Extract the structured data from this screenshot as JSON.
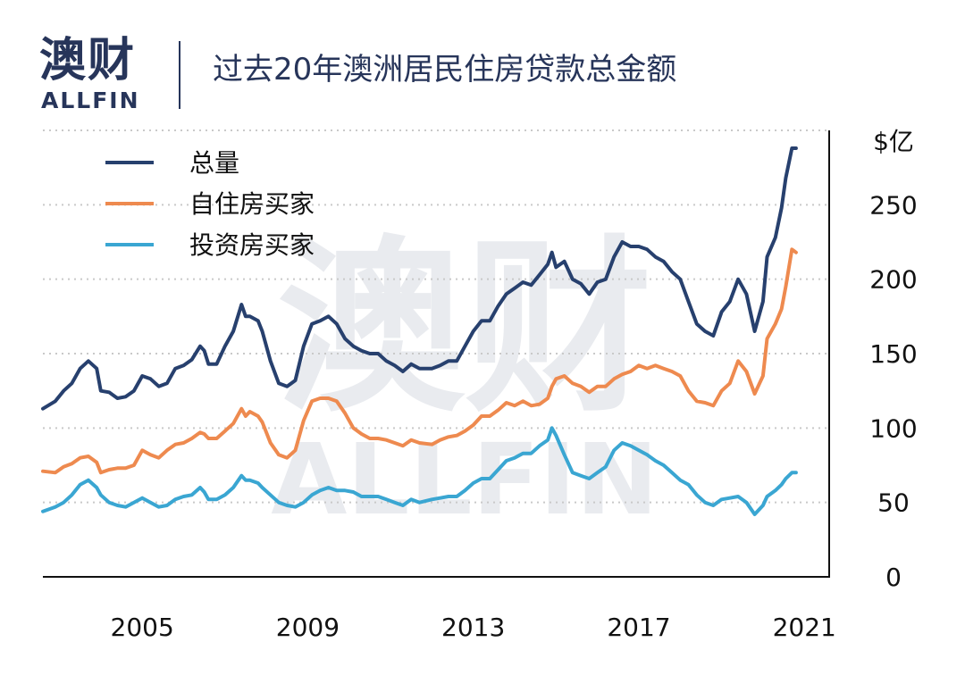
{
  "header": {
    "logo_cn": "澳财",
    "logo_en": "ALLFIN",
    "title": "过去20年澳洲居民住房贷款总金额"
  },
  "colors": {
    "total": "#27406e",
    "owner": "#ee8a4f",
    "investor": "#3aa6d2",
    "brand": "#27355a"
  },
  "chart_data": {
    "type": "line",
    "title": "过去20年澳洲居民住房贷款总金额",
    "ylabel": "$亿",
    "xlabel": "",
    "xlim": [
      2002.6,
      2021.6
    ],
    "ylim": [
      0,
      300
    ],
    "x_ticks": [
      2005,
      2009,
      2013,
      2017,
      2021
    ],
    "x_tick_labels": [
      "2005",
      "2009",
      "2013",
      "2017",
      "2021"
    ],
    "y_ticks": [
      0,
      50,
      100,
      150,
      200,
      250
    ],
    "y_tick_labels": [
      "0",
      "50",
      "100",
      "150",
      "200",
      "250"
    ],
    "y_unit_label": "$亿",
    "y_axis_side": "right",
    "grid": "horizontal-dotted",
    "legend_position": "top-left",
    "watermark": {
      "cn": "澳财",
      "en": "ALLFIN"
    },
    "series": [
      {
        "name": "总量",
        "color": "#27406e",
        "points": [
          [
            2002.6,
            113
          ],
          [
            2002.9,
            118
          ],
          [
            2003.1,
            125
          ],
          [
            2003.3,
            130
          ],
          [
            2003.5,
            140
          ],
          [
            2003.7,
            145
          ],
          [
            2003.9,
            140
          ],
          [
            2004.0,
            125
          ],
          [
            2004.2,
            124
          ],
          [
            2004.4,
            120
          ],
          [
            2004.6,
            121
          ],
          [
            2004.8,
            125
          ],
          [
            2005.0,
            135
          ],
          [
            2005.2,
            133
          ],
          [
            2005.4,
            128
          ],
          [
            2005.6,
            130
          ],
          [
            2005.8,
            140
          ],
          [
            2006.0,
            142
          ],
          [
            2006.2,
            146
          ],
          [
            2006.4,
            155
          ],
          [
            2006.5,
            152
          ],
          [
            2006.6,
            143
          ],
          [
            2006.8,
            143
          ],
          [
            2007.0,
            155
          ],
          [
            2007.2,
            165
          ],
          [
            2007.4,
            183
          ],
          [
            2007.5,
            175
          ],
          [
            2007.6,
            175
          ],
          [
            2007.8,
            172
          ],
          [
            2007.9,
            165
          ],
          [
            2008.1,
            145
          ],
          [
            2008.3,
            130
          ],
          [
            2008.5,
            128
          ],
          [
            2008.7,
            132
          ],
          [
            2008.9,
            155
          ],
          [
            2009.1,
            170
          ],
          [
            2009.3,
            172
          ],
          [
            2009.5,
            175
          ],
          [
            2009.7,
            170
          ],
          [
            2009.9,
            160
          ],
          [
            2010.1,
            155
          ],
          [
            2010.3,
            152
          ],
          [
            2010.5,
            150
          ],
          [
            2010.7,
            150
          ],
          [
            2010.9,
            145
          ],
          [
            2011.1,
            142
          ],
          [
            2011.3,
            138
          ],
          [
            2011.5,
            143
          ],
          [
            2011.7,
            140
          ],
          [
            2012.0,
            140
          ],
          [
            2012.2,
            142
          ],
          [
            2012.4,
            145
          ],
          [
            2012.6,
            145
          ],
          [
            2012.8,
            155
          ],
          [
            2013.0,
            165
          ],
          [
            2013.2,
            172
          ],
          [
            2013.4,
            172
          ],
          [
            2013.6,
            182
          ],
          [
            2013.8,
            190
          ],
          [
            2014.0,
            194
          ],
          [
            2014.2,
            198
          ],
          [
            2014.4,
            196
          ],
          [
            2014.6,
            203
          ],
          [
            2014.8,
            210
          ],
          [
            2014.9,
            218
          ],
          [
            2015.0,
            208
          ],
          [
            2015.2,
            212
          ],
          [
            2015.4,
            200
          ],
          [
            2015.6,
            197
          ],
          [
            2015.8,
            190
          ],
          [
            2016.0,
            198
          ],
          [
            2016.2,
            200
          ],
          [
            2016.4,
            215
          ],
          [
            2016.6,
            225
          ],
          [
            2016.8,
            222
          ],
          [
            2017.0,
            222
          ],
          [
            2017.2,
            220
          ],
          [
            2017.4,
            215
          ],
          [
            2017.6,
            212
          ],
          [
            2017.8,
            205
          ],
          [
            2018.0,
            200
          ],
          [
            2018.2,
            185
          ],
          [
            2018.4,
            170
          ],
          [
            2018.6,
            165
          ],
          [
            2018.8,
            162
          ],
          [
            2019.0,
            178
          ],
          [
            2019.2,
            185
          ],
          [
            2019.4,
            200
          ],
          [
            2019.6,
            190
          ],
          [
            2019.8,
            165
          ],
          [
            2020.0,
            185
          ],
          [
            2020.1,
            215
          ],
          [
            2020.3,
            228
          ],
          [
            2020.45,
            248
          ],
          [
            2020.55,
            268
          ],
          [
            2020.7,
            288
          ],
          [
            2020.8,
            288
          ]
        ]
      },
      {
        "name": "自住房买家",
        "color": "#ee8a4f",
        "points": [
          [
            2002.6,
            71
          ],
          [
            2002.9,
            70
          ],
          [
            2003.1,
            74
          ],
          [
            2003.3,
            76
          ],
          [
            2003.5,
            80
          ],
          [
            2003.7,
            81
          ],
          [
            2003.9,
            77
          ],
          [
            2004.0,
            70
          ],
          [
            2004.2,
            72
          ],
          [
            2004.4,
            73
          ],
          [
            2004.6,
            73
          ],
          [
            2004.8,
            75
          ],
          [
            2005.0,
            85
          ],
          [
            2005.2,
            82
          ],
          [
            2005.4,
            80
          ],
          [
            2005.6,
            85
          ],
          [
            2005.8,
            89
          ],
          [
            2006.0,
            90
          ],
          [
            2006.2,
            93
          ],
          [
            2006.4,
            97
          ],
          [
            2006.5,
            96
          ],
          [
            2006.6,
            93
          ],
          [
            2006.8,
            93
          ],
          [
            2007.0,
            98
          ],
          [
            2007.2,
            103
          ],
          [
            2007.4,
            113
          ],
          [
            2007.5,
            108
          ],
          [
            2007.6,
            111
          ],
          [
            2007.8,
            108
          ],
          [
            2007.9,
            104
          ],
          [
            2008.1,
            90
          ],
          [
            2008.3,
            82
          ],
          [
            2008.5,
            80
          ],
          [
            2008.7,
            85
          ],
          [
            2008.9,
            105
          ],
          [
            2009.1,
            118
          ],
          [
            2009.3,
            120
          ],
          [
            2009.5,
            120
          ],
          [
            2009.7,
            118
          ],
          [
            2009.9,
            110
          ],
          [
            2010.1,
            100
          ],
          [
            2010.3,
            96
          ],
          [
            2010.5,
            93
          ],
          [
            2010.7,
            93
          ],
          [
            2010.9,
            92
          ],
          [
            2011.1,
            90
          ],
          [
            2011.3,
            88
          ],
          [
            2011.5,
            92
          ],
          [
            2011.7,
            90
          ],
          [
            2012.0,
            89
          ],
          [
            2012.2,
            92
          ],
          [
            2012.4,
            94
          ],
          [
            2012.6,
            95
          ],
          [
            2012.8,
            98
          ],
          [
            2013.0,
            102
          ],
          [
            2013.2,
            108
          ],
          [
            2013.4,
            108
          ],
          [
            2013.6,
            112
          ],
          [
            2013.8,
            117
          ],
          [
            2014.0,
            115
          ],
          [
            2014.2,
            118
          ],
          [
            2014.4,
            115
          ],
          [
            2014.6,
            116
          ],
          [
            2014.8,
            120
          ],
          [
            2014.9,
            128
          ],
          [
            2015.0,
            133
          ],
          [
            2015.2,
            135
          ],
          [
            2015.4,
            130
          ],
          [
            2015.6,
            128
          ],
          [
            2015.8,
            124
          ],
          [
            2016.0,
            128
          ],
          [
            2016.2,
            128
          ],
          [
            2016.4,
            133
          ],
          [
            2016.6,
            136
          ],
          [
            2016.8,
            138
          ],
          [
            2017.0,
            142
          ],
          [
            2017.2,
            140
          ],
          [
            2017.4,
            142
          ],
          [
            2017.6,
            140
          ],
          [
            2017.8,
            138
          ],
          [
            2018.0,
            135
          ],
          [
            2018.2,
            125
          ],
          [
            2018.4,
            118
          ],
          [
            2018.6,
            117
          ],
          [
            2018.8,
            115
          ],
          [
            2019.0,
            125
          ],
          [
            2019.2,
            130
          ],
          [
            2019.4,
            145
          ],
          [
            2019.6,
            138
          ],
          [
            2019.8,
            123
          ],
          [
            2020.0,
            135
          ],
          [
            2020.1,
            160
          ],
          [
            2020.3,
            170
          ],
          [
            2020.45,
            180
          ],
          [
            2020.55,
            195
          ],
          [
            2020.7,
            220
          ],
          [
            2020.8,
            218
          ]
        ]
      },
      {
        "name": "投资房买家",
        "color": "#3aa6d2",
        "points": [
          [
            2002.6,
            44
          ],
          [
            2002.9,
            47
          ],
          [
            2003.1,
            50
          ],
          [
            2003.3,
            55
          ],
          [
            2003.5,
            62
          ],
          [
            2003.7,
            65
          ],
          [
            2003.9,
            60
          ],
          [
            2004.0,
            55
          ],
          [
            2004.2,
            50
          ],
          [
            2004.4,
            48
          ],
          [
            2004.6,
            47
          ],
          [
            2004.8,
            50
          ],
          [
            2005.0,
            53
          ],
          [
            2005.2,
            50
          ],
          [
            2005.4,
            47
          ],
          [
            2005.6,
            48
          ],
          [
            2005.8,
            52
          ],
          [
            2006.0,
            54
          ],
          [
            2006.2,
            55
          ],
          [
            2006.4,
            60
          ],
          [
            2006.5,
            57
          ],
          [
            2006.6,
            52
          ],
          [
            2006.8,
            52
          ],
          [
            2007.0,
            55
          ],
          [
            2007.2,
            60
          ],
          [
            2007.4,
            68
          ],
          [
            2007.5,
            65
          ],
          [
            2007.6,
            65
          ],
          [
            2007.8,
            63
          ],
          [
            2007.9,
            60
          ],
          [
            2008.1,
            55
          ],
          [
            2008.3,
            50
          ],
          [
            2008.5,
            48
          ],
          [
            2008.7,
            47
          ],
          [
            2008.9,
            50
          ],
          [
            2009.1,
            55
          ],
          [
            2009.3,
            58
          ],
          [
            2009.5,
            60
          ],
          [
            2009.7,
            58
          ],
          [
            2009.9,
            58
          ],
          [
            2010.1,
            57
          ],
          [
            2010.3,
            54
          ],
          [
            2010.5,
            54
          ],
          [
            2010.7,
            54
          ],
          [
            2010.9,
            52
          ],
          [
            2011.1,
            50
          ],
          [
            2011.3,
            48
          ],
          [
            2011.5,
            52
          ],
          [
            2011.7,
            50
          ],
          [
            2012.0,
            52
          ],
          [
            2012.2,
            53
          ],
          [
            2012.4,
            54
          ],
          [
            2012.6,
            54
          ],
          [
            2012.8,
            58
          ],
          [
            2013.0,
            63
          ],
          [
            2013.2,
            66
          ],
          [
            2013.4,
            66
          ],
          [
            2013.6,
            72
          ],
          [
            2013.8,
            78
          ],
          [
            2014.0,
            80
          ],
          [
            2014.2,
            83
          ],
          [
            2014.4,
            83
          ],
          [
            2014.6,
            88
          ],
          [
            2014.8,
            92
          ],
          [
            2014.9,
            100
          ],
          [
            2015.0,
            95
          ],
          [
            2015.2,
            82
          ],
          [
            2015.4,
            70
          ],
          [
            2015.6,
            68
          ],
          [
            2015.8,
            66
          ],
          [
            2016.0,
            70
          ],
          [
            2016.2,
            74
          ],
          [
            2016.4,
            85
          ],
          [
            2016.6,
            90
          ],
          [
            2016.8,
            88
          ],
          [
            2017.0,
            85
          ],
          [
            2017.2,
            82
          ],
          [
            2017.4,
            78
          ],
          [
            2017.6,
            75
          ],
          [
            2017.8,
            70
          ],
          [
            2018.0,
            65
          ],
          [
            2018.2,
            62
          ],
          [
            2018.4,
            55
          ],
          [
            2018.6,
            50
          ],
          [
            2018.8,
            48
          ],
          [
            2019.0,
            52
          ],
          [
            2019.2,
            53
          ],
          [
            2019.4,
            54
          ],
          [
            2019.6,
            50
          ],
          [
            2019.8,
            42
          ],
          [
            2020.0,
            48
          ],
          [
            2020.1,
            54
          ],
          [
            2020.3,
            58
          ],
          [
            2020.45,
            62
          ],
          [
            2020.55,
            66
          ],
          [
            2020.7,
            70
          ],
          [
            2020.8,
            70
          ]
        ]
      }
    ]
  }
}
